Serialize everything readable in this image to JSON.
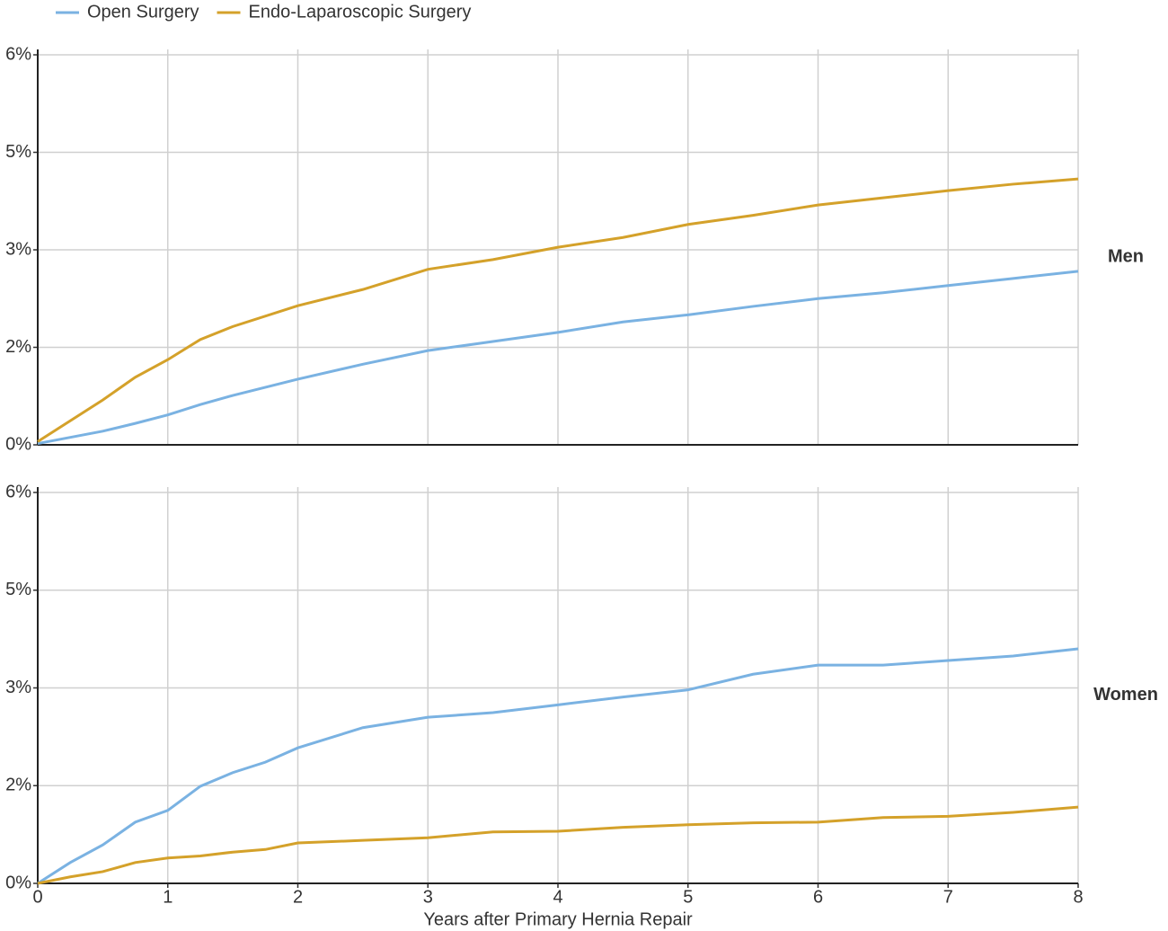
{
  "chart_data": [
    {
      "type": "line",
      "legend": "top-left",
      "grid": true,
      "panel_label": "Men",
      "x": [
        0,
        0.5,
        0.75,
        1,
        1.25,
        1.5,
        2,
        2.5,
        3,
        3.5,
        4,
        4.5,
        5,
        5.5,
        6,
        6.5,
        7,
        7.5,
        8
      ],
      "xlim": [
        0,
        8
      ],
      "xticks": [
        0,
        1,
        2,
        3,
        4,
        5,
        6,
        7,
        8
      ],
      "ylim": [
        0,
        6
      ],
      "yticks": [
        {
          "value": 0,
          "label": "0%"
        },
        {
          "value": 1.5,
          "label": "2%"
        },
        {
          "value": 3,
          "label": "3%"
        },
        {
          "value": 4.5,
          "label": "5%"
        },
        {
          "value": 6,
          "label": "6%"
        }
      ],
      "series": [
        {
          "name": "Open Surgery",
          "color": "#7ab2e2",
          "values": [
            0.02,
            0.21,
            0.33,
            0.46,
            0.62,
            0.76,
            1.01,
            1.24,
            1.45,
            1.59,
            1.73,
            1.89,
            2.0,
            2.13,
            2.25,
            2.34,
            2.45,
            2.56,
            2.67
          ]
        },
        {
          "name": "Endo-Laparoscopic Surgery",
          "color": "#d4a12a",
          "values": [
            0.05,
            0.69,
            1.04,
            1.31,
            1.62,
            1.82,
            2.14,
            2.39,
            2.7,
            2.85,
            3.04,
            3.19,
            3.39,
            3.53,
            3.69,
            3.8,
            3.91,
            4.01,
            4.09
          ]
        }
      ]
    },
    {
      "type": "line",
      "grid": true,
      "panel_label": "Women",
      "xlabel": "Years after Primary Hernia Repair",
      "x": [
        0,
        0.25,
        0.5,
        0.75,
        1,
        1.25,
        1.5,
        1.75,
        2,
        2.5,
        3,
        3.5,
        4,
        4.5,
        5,
        5.5,
        6,
        6.5,
        7,
        7.5,
        8
      ],
      "xlim": [
        0,
        8
      ],
      "xticks": [
        0,
        1,
        2,
        3,
        4,
        5,
        6,
        7,
        8
      ],
      "ylim": [
        0,
        6
      ],
      "yticks": [
        {
          "value": 0,
          "label": "0%"
        },
        {
          "value": 1.5,
          "label": "2%"
        },
        {
          "value": 3,
          "label": "3%"
        },
        {
          "value": 4.5,
          "label": "5%"
        },
        {
          "value": 6,
          "label": "6%"
        }
      ],
      "series": [
        {
          "color": "#7ab2e2",
          "values": [
            0,
            0.32,
            0.59,
            0.94,
            1.12,
            1.49,
            1.7,
            1.86,
            2.08,
            2.39,
            2.55,
            2.62,
            2.74,
            2.86,
            2.97,
            3.21,
            3.35,
            3.35,
            3.42,
            3.49,
            3.6
          ]
        },
        {
          "color": "#d4a12a",
          "values": [
            0,
            0.1,
            0.18,
            0.32,
            0.39,
            0.42,
            0.48,
            0.52,
            0.62,
            0.66,
            0.7,
            0.79,
            0.8,
            0.86,
            0.9,
            0.93,
            0.94,
            1.01,
            1.03,
            1.09,
            1.17
          ]
        }
      ]
    }
  ]
}
